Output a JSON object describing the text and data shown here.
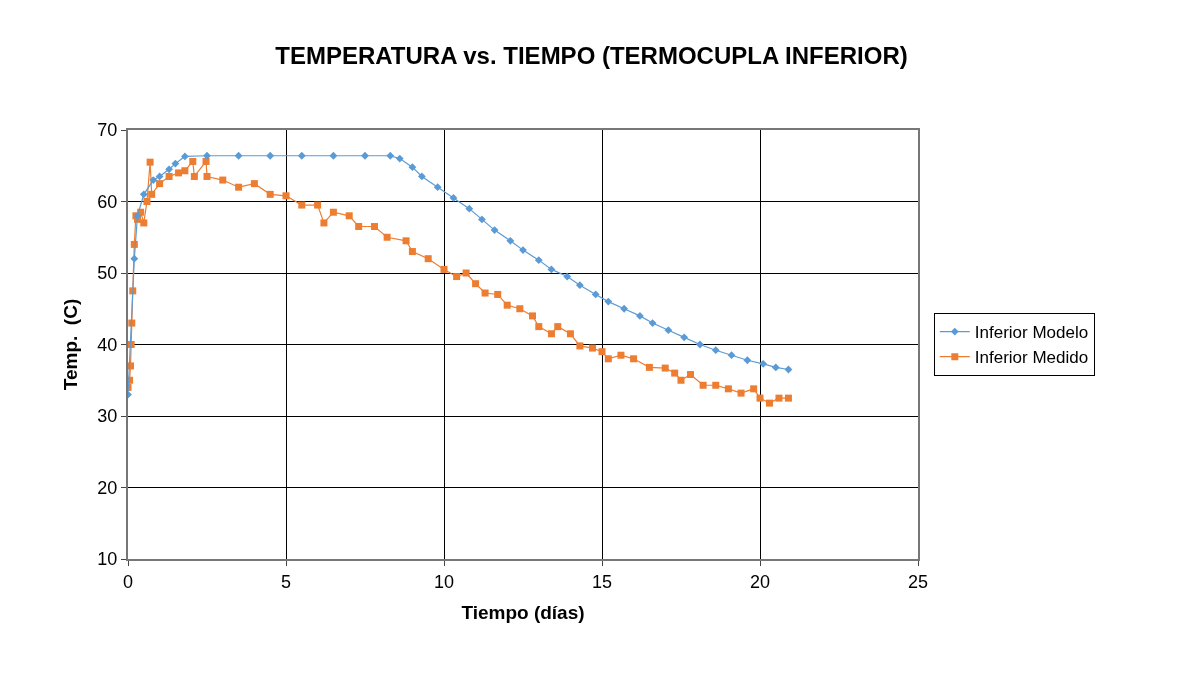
{
  "chart_data": {
    "type": "line",
    "title": "TEMPERATURA vs. TIEMPO (TERMOCUPLA INFERIOR)",
    "xlabel": "Tiempo (días)",
    "ylabel": "Temp.  (C)",
    "xlim": [
      0,
      25
    ],
    "xticks": [
      0,
      5,
      10,
      15,
      20,
      25
    ],
    "ylim": [
      10,
      70
    ],
    "yticks": [
      10,
      20,
      30,
      40,
      50,
      60,
      70
    ],
    "grid": true,
    "legend": "right",
    "series": [
      {
        "name": "Inferior Modelo",
        "color": "#5b9bd5",
        "marker": "diamond",
        "x": [
          0,
          0.2,
          0.3,
          0.5,
          0.8,
          1.0,
          1.3,
          1.5,
          1.8,
          2.5,
          3.5,
          4.5,
          5.5,
          6.5,
          7.5,
          8.3,
          8.6,
          9.0,
          9.3,
          9.8,
          10.3,
          10.8,
          11.2,
          11.6,
          12.1,
          12.5,
          13.0,
          13.4,
          13.9,
          14.3,
          14.8,
          15.2,
          15.7,
          16.2,
          16.6,
          17.1,
          17.6,
          18.1,
          18.6,
          19.1,
          19.6,
          20.1,
          20.5,
          20.9
        ],
        "values": [
          33,
          52,
          58,
          61,
          63,
          63.5,
          64.5,
          65.3,
          66.3,
          66.4,
          66.4,
          66.4,
          66.4,
          66.4,
          66.4,
          66.4,
          66,
          64.8,
          63.5,
          62,
          60.5,
          59,
          57.5,
          56,
          54.5,
          53.2,
          51.8,
          50.5,
          49.5,
          48.3,
          47,
          46,
          45,
          44,
          43,
          42,
          41,
          40,
          39.2,
          38.5,
          37.8,
          37.3,
          36.8,
          36.5
        ]
      },
      {
        "name": "Inferior Medido",
        "color": "#ed7d31",
        "marker": "square",
        "x": [
          0,
          0.05,
          0.08,
          0.1,
          0.12,
          0.15,
          0.2,
          0.25,
          0.3,
          0.4,
          0.5,
          0.6,
          0.7,
          0.75,
          1.0,
          1.3,
          1.6,
          1.8,
          2.05,
          2.1,
          2.47,
          2.5,
          3.0,
          3.5,
          4.0,
          4.5,
          5.0,
          5.5,
          6.0,
          6.2,
          6.5,
          7.0,
          7.3,
          7.8,
          8.2,
          8.8,
          9.0,
          9.5,
          10.0,
          10.4,
          10.7,
          11.0,
          11.3,
          11.7,
          12.0,
          12.4,
          12.8,
          13.0,
          13.4,
          13.6,
          14.0,
          14.3,
          14.7,
          15.0,
          15.2,
          15.6,
          16.0,
          16.5,
          17.0,
          17.3,
          17.5,
          17.8,
          18.2,
          18.6,
          19.0,
          19.4,
          19.8,
          20.0,
          20.3,
          20.6,
          20.9
        ],
        "values": [
          34,
          35,
          37,
          40,
          43,
          47.5,
          54,
          58,
          57.5,
          58.5,
          57,
          60,
          65.5,
          61,
          62.5,
          63.5,
          64,
          64.3,
          65.6,
          63.5,
          65.6,
          63.5,
          63,
          62,
          62.5,
          61,
          60.8,
          59.5,
          59.5,
          57,
          58.5,
          58,
          56.5,
          56.5,
          55,
          54.5,
          53,
          52,
          50.5,
          49.5,
          50,
          48.5,
          47.2,
          47,
          45.5,
          45,
          44,
          42.5,
          41.5,
          42.5,
          41.5,
          39.8,
          39.5,
          39,
          38,
          38.5,
          38,
          36.8,
          36.7,
          36,
          35,
          35.8,
          34.3,
          34.3,
          33.8,
          33.2,
          33.8,
          32.5,
          31.8,
          32.5,
          32.5
        ]
      }
    ]
  }
}
